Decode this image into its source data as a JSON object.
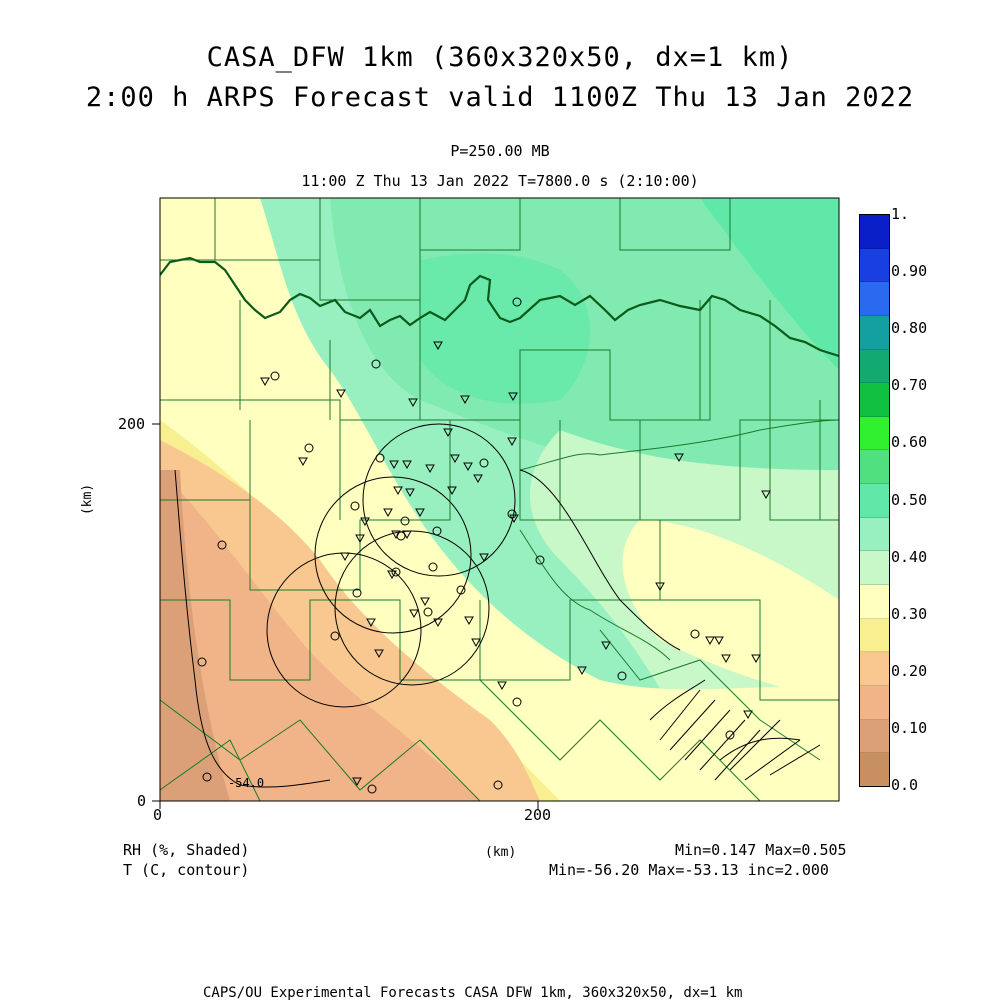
{
  "header": {
    "title_line1": "CASA_DFW 1km (360x320x50, dx=1 km)",
    "title_line2": "2:00 h ARPS Forecast valid 1100Z Thu 13 Jan 2022",
    "pressure": "P=250.00 MB",
    "time_line": "11:00 Z Thu 13 Jan 2022   T=7800.0 s (2:10:00)"
  },
  "axes": {
    "x_ticks": [
      "0",
      "200"
    ],
    "y_ticks": [
      "0",
      "200"
    ],
    "x_label": "(km)",
    "y_label": "(km)"
  },
  "colorbar": {
    "labels": [
      "1.",
      "0.90",
      "0.80",
      "0.70",
      "0.60",
      "0.50",
      "0.40",
      "0.30",
      "0.20",
      "0.10",
      "0.0"
    ],
    "colors": [
      "#0a1fc8",
      "#1a3fe0",
      "#2a6af0",
      "#14a0a0",
      "#12aa70",
      "#10c040",
      "#30f030",
      "#50e080",
      "#60e8a8",
      "#98f0c0",
      "#c8f8c8",
      "#ffffc0",
      "#f8f090",
      "#f8c890",
      "#f0b488",
      "#dca078",
      "#c89060"
    ]
  },
  "legend": {
    "field1": "RH (%, Shaded)",
    "field2": "T (C, contour)",
    "center_unit": "(km)",
    "stats1": "Min=0.147 Max=0.505",
    "stats2": "Min=-56.20 Max=-53.13 inc=2.000"
  },
  "map": {
    "contour_label": "-54.0",
    "radar_rings": 4
  },
  "footer": {
    "credit": "CAPS/OU Experimental Forecasts  CASA DFW 1km, 360x320x50, dx=1 km"
  }
}
